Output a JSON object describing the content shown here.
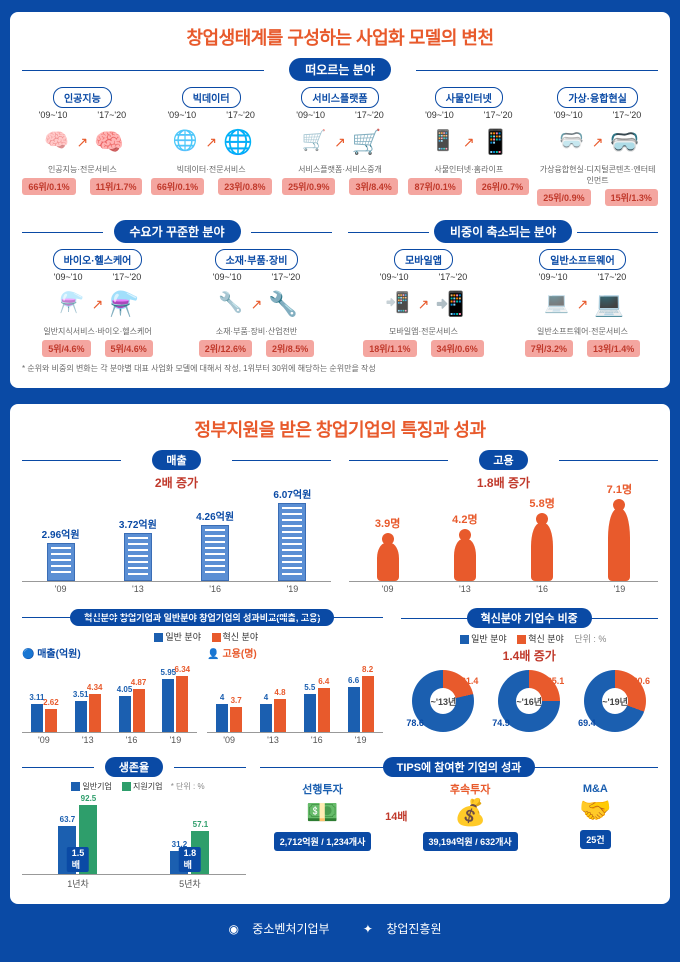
{
  "section1": {
    "title": "창업생태계를 구성하는 사업화 모델의 변천",
    "group_rising": "떠오르는 분야",
    "group_steady": "수요가 꾸준한 분야",
    "group_declining": "비중이 축소되는 분야",
    "period_a": "'09~'10",
    "period_b": "'17~'20",
    "fields_rising": [
      {
        "name": "인공지능",
        "sub": "인공지능·전문서비스",
        "b1": "66위/0.1%",
        "b2": "11위/1.7%"
      },
      {
        "name": "빅데이터",
        "sub": "빅데이터·전문서비스",
        "b1": "66위/0.1%",
        "b2": "23위/0.8%"
      },
      {
        "name": "서비스플랫폼",
        "sub": "서비스플랫폼·서비스중개",
        "b1": "25위/0.9%",
        "b2": "3위/8.4%"
      },
      {
        "name": "사물인터넷",
        "sub": "사물인터넷·홈라이프",
        "b1": "87위/0.1%",
        "b2": "26위/0.7%"
      },
      {
        "name": "가상·융합현실",
        "sub": "가상융합현실·디지털콘텐츠·엔터테인먼트",
        "b1": "25위/0.9%",
        "b2": "15위/1.3%"
      }
    ],
    "fields_steady": [
      {
        "name": "바이오·헬스케어",
        "sub": "일반지식서비스·바이오·헬스케어",
        "b1": "5위/4.6%",
        "b2": "5위/4.6%"
      },
      {
        "name": "소재·부품·장비",
        "sub": "소재·부품·장비·산업전반",
        "b1": "2위/12.6%",
        "b2": "2위/8.5%"
      }
    ],
    "fields_declining": [
      {
        "name": "모바일앱",
        "sub": "모바일앱·전문서비스",
        "b1": "18위/1.1%",
        "b2": "34위/0.6%"
      },
      {
        "name": "일반소프트웨어",
        "sub": "일반소프트웨어·전문서비스",
        "b1": "7위/3.2%",
        "b2": "13위/1.4%"
      }
    ],
    "footnote": "* 순위와 비중의 변화는 각 분야별 대표 사업화 모델에 대해서 작성, 1위부터 30위에 해당하는 순위만을 작성"
  },
  "section2": {
    "title": "정부지원을 받은 창업기업의 특징과 성과",
    "revenue": {
      "label": "매출",
      "increase": "2배 증가",
      "years": [
        "'09",
        "'13",
        "'16",
        "'19"
      ],
      "values": [
        "2.96억원",
        "3.72억원",
        "4.26억원",
        "6.07억원"
      ],
      "heights": [
        36,
        46,
        54,
        76
      ],
      "color": "#5b8fd4"
    },
    "employ": {
      "label": "고용",
      "increase": "1.8배 증가",
      "years": [
        "'09",
        "'13",
        "'16",
        "'19"
      ],
      "values": [
        "3.9명",
        "4.2명",
        "5.8명",
        "7.1명"
      ],
      "heights": [
        38,
        42,
        58,
        72
      ],
      "color": "#e85a2c"
    },
    "compare": {
      "title": "혁신분야 창업기업과 일반분야 창업기업의 성과비교(매출, 고용)",
      "legend_a": "일반 분야",
      "legend_b": "혁신 분야",
      "color_a": "#1b5fb0",
      "color_b": "#e85a2c",
      "rev_label": "매출(억원)",
      "emp_label": "고용(명)",
      "years": [
        "'09",
        "'13",
        "'16",
        "'19"
      ],
      "rev_a": [
        3.11,
        3.51,
        4.05,
        5.95
      ],
      "rev_b": [
        2.62,
        4.34,
        4.87,
        6.34
      ],
      "emp_a": [
        4.0,
        4.0,
        5.5,
        6.6
      ],
      "emp_b": [
        3.7,
        4.8,
        6.4,
        8.2
      ]
    },
    "ratio": {
      "title": "혁신분야 기업수 비중",
      "legend_a": "일반 분야",
      "legend_b": "혁신 분야",
      "unit": "단위 : %",
      "increase": "1.4배 증가",
      "donuts": [
        {
          "label": "~'13년",
          "a": 78.6,
          "b": 21.4
        },
        {
          "label": "~'16년",
          "a": 74.9,
          "b": 25.1
        },
        {
          "label": "~'19년",
          "a": 69.4,
          "b": 30.6
        }
      ],
      "color_a": "#1b5fb0",
      "color_b": "#e85a2c"
    },
    "survival": {
      "title": "생존율",
      "legend_a": "일반기업",
      "legend_b": "지원기업",
      "unit": "* 단위 : %",
      "color_a": "#1b5fb0",
      "color_b": "#2e9e6b",
      "groups": [
        {
          "label": "1년차",
          "a": 63.7,
          "b": 92.5,
          "mult": "1.5배"
        },
        {
          "label": "5년차",
          "a": 31.2,
          "b": 57.1,
          "mult": "1.8배"
        }
      ]
    },
    "tips": {
      "title": "TIPS에 참여한 기업의 성과",
      "pre_label": "선행투자",
      "post_label": "후속투자",
      "ma_label": "M&A",
      "mult": "14배",
      "pre": "2,712억원 / 1,234개사",
      "post": "39,194억원 / 632개사",
      "ma": "25건"
    }
  },
  "footer": {
    "org1": "중소벤처기업부",
    "org2": "창업진흥원"
  }
}
